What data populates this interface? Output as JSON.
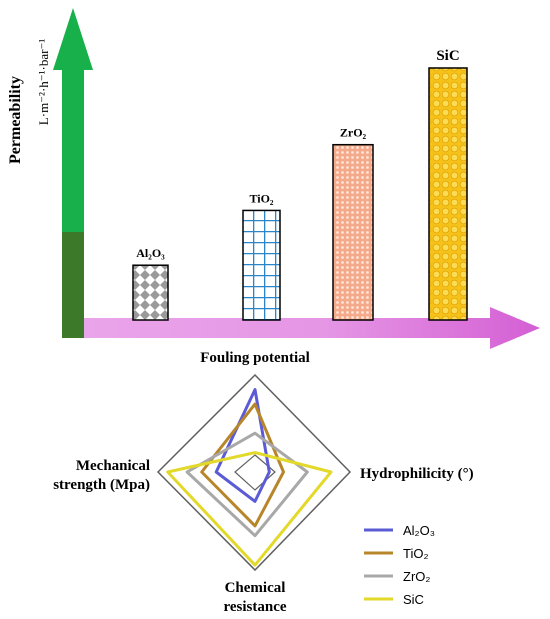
{
  "chart_data": [
    {
      "type": "bar",
      "ylabel": "Permeability",
      "yunit": "L·m⁻²·h⁻¹·bar⁻¹",
      "categories": [
        "Al₂O₃",
        "TiO₂",
        "ZrO₂",
        "SiC"
      ],
      "values": [
        1.0,
        2.0,
        3.2,
        4.6
      ],
      "y_axis_color": "#1aa84a",
      "x_axis_color": "#e08fe0",
      "bar_patterns": [
        "gray-diamonds",
        "blue-grid",
        "orange-dots",
        "yellow-circles"
      ]
    },
    {
      "type": "radar",
      "axes": [
        {
          "label": "Fouling potential"
        },
        {
          "label": "Hydrophilicity (°)"
        },
        {
          "label": "Chemical resistance"
        },
        {
          "label": "Mechanical strength (Mpa)"
        }
      ],
      "series": [
        {
          "name": "Al₂O₃",
          "color": "#5b5bd6",
          "values": [
            0.85,
            0.15,
            0.3,
            0.4
          ]
        },
        {
          "name": "TiO₂",
          "color": "#b8862a",
          "values": [
            0.7,
            0.3,
            0.55,
            0.55
          ]
        },
        {
          "name": "ZrO₂",
          "color": "#a8a8a8",
          "values": [
            0.4,
            0.55,
            0.65,
            0.7
          ]
        },
        {
          "name": "SiC",
          "color": "#e3d92a",
          "values": [
            0.2,
            0.8,
            0.95,
            0.9
          ]
        }
      ]
    }
  ]
}
